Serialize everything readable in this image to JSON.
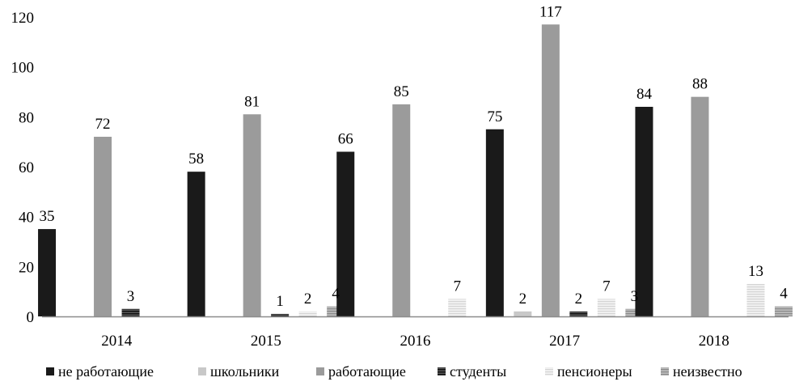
{
  "chart_data": {
    "type": "bar",
    "categories": [
      "2014",
      "2015",
      "2016",
      "2017",
      "2018"
    ],
    "series": [
      {
        "name": "не работающие",
        "values": [
          35,
          58,
          66,
          75,
          84
        ],
        "color": "#1a1a1a",
        "pattern": "solid"
      },
      {
        "name": "школьники",
        "values": [
          0,
          0,
          0,
          2,
          0
        ],
        "color": "#c8c8c8",
        "pattern": "solid"
      },
      {
        "name": "работающие",
        "values": [
          72,
          81,
          85,
          117,
          88
        ],
        "color": "#9b9b9b",
        "pattern": "solid"
      },
      {
        "name": "студенты",
        "values": [
          3,
          1,
          0,
          2,
          0
        ],
        "color": "#2b2b2b",
        "pattern": "hstripe-dark"
      },
      {
        "name": "пенсионеры",
        "values": [
          0,
          2,
          7,
          7,
          13
        ],
        "color": "#e4e4e4",
        "pattern": "hstripe-light"
      },
      {
        "name": "неизвестно",
        "values": [
          0,
          4,
          0,
          3,
          4
        ],
        "color": "#a8a8a8",
        "pattern": "hstripe-mid"
      }
    ],
    "data_labels": [
      [
        "35",
        "58",
        "66",
        "75",
        "84"
      ],
      [
        "",
        "",
        "",
        "2",
        ""
      ],
      [
        "72",
        "81",
        "85",
        "117",
        "88"
      ],
      [
        "3",
        "1",
        "",
        "2",
        ""
      ],
      [
        "",
        "2",
        "7",
        "7",
        "13"
      ],
      [
        "",
        "4",
        "",
        "3",
        "4"
      ]
    ],
    "y_ticks": [
      "0",
      "20",
      "40",
      "60",
      "80",
      "100",
      "120"
    ],
    "ylim": [
      0,
      120
    ],
    "grid": false,
    "legend_position": "bottom"
  }
}
